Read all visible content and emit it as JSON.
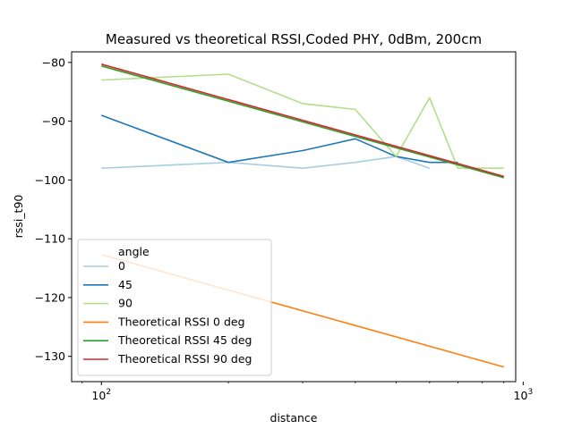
{
  "chart_data": {
    "type": "line",
    "title": "Measured vs theoretical RSSI,Coded PHY, 0dBm, 200cm",
    "xlabel": "distance",
    "ylabel": "rssi_t90",
    "xscale": "log",
    "xlim": [
      85,
      960
    ],
    "ylim": [
      -134.3,
      -78.2
    ],
    "x_ticks": [
      {
        "value": 100,
        "base": "10",
        "exp": "2"
      },
      {
        "value": 1000,
        "base": "10",
        "exp": "3"
      }
    ],
    "y_ticks": [
      {
        "value": -80,
        "label": "−80"
      },
      {
        "value": -90,
        "label": "−90"
      },
      {
        "value": -100,
        "label": "−100"
      },
      {
        "value": -110,
        "label": "−110"
      },
      {
        "value": -120,
        "label": "−120"
      },
      {
        "value": -130,
        "label": "−130"
      }
    ],
    "legend": {
      "title": "angle",
      "placement": "lower-left"
    },
    "series": [
      {
        "name": "0",
        "color": "#a6cee3",
        "x": [
          100,
          200,
          300,
          400,
          500,
          600
        ],
        "y": [
          -98,
          -97,
          -98,
          -97,
          -96,
          -98
        ]
      },
      {
        "name": "45",
        "color": "#1f78b4",
        "x": [
          100,
          200,
          300,
          400,
          500,
          600,
          700
        ],
        "y": [
          -89,
          -97,
          -95,
          -93,
          -96,
          -97,
          -97
        ]
      },
      {
        "name": "90",
        "color": "#b2df8a",
        "x": [
          100,
          200,
          300,
          400,
          500,
          600,
          700,
          800,
          900
        ],
        "y": [
          -83,
          -82,
          -87,
          -88,
          -96,
          -86,
          -98,
          -98,
          -98
        ]
      },
      {
        "name": "Theoretical RSSI 0 deg",
        "color": "#ff7f0e",
        "x": [
          100,
          900
        ],
        "y": [
          -112.7,
          -131.8
        ]
      },
      {
        "name": "Theoretical RSSI 45 deg",
        "color": "#2ca02c",
        "x": [
          100,
          900
        ],
        "y": [
          -80.6,
          -99.6
        ]
      },
      {
        "name": "Theoretical RSSI 90 deg",
        "color": "#d62728",
        "x": [
          100,
          900
        ],
        "y": [
          -80.3,
          -99.4
        ]
      }
    ]
  }
}
